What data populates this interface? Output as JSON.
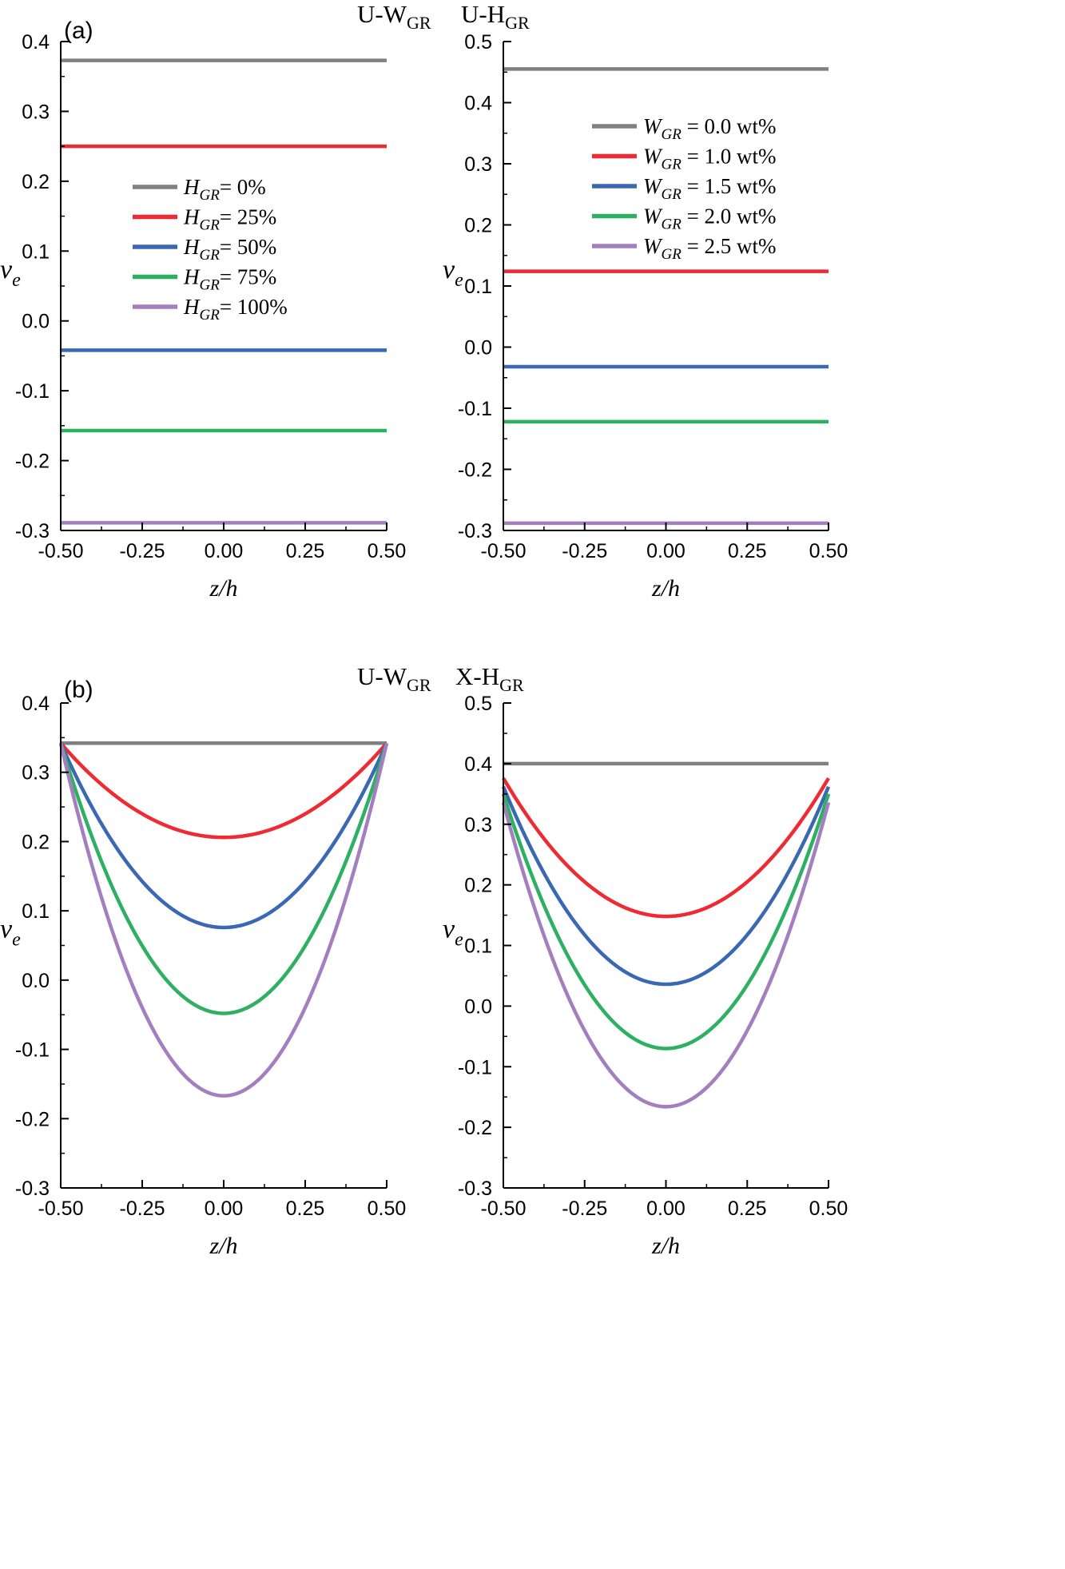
{
  "figure": {
    "panel_a": {
      "label": "(a)",
      "title_left": {
        "base": "U-W",
        "sub": "GR"
      },
      "title_right": {
        "base": "U-H",
        "sub": "GR"
      }
    },
    "panel_b": {
      "label": "(b)",
      "title_left": {
        "base": "U-W",
        "sub": "GR"
      },
      "title_right": {
        "base": "X-H",
        "sub": "GR"
      }
    }
  },
  "chart_data": [
    {
      "id": "a-left",
      "type": "line",
      "shape": "constant",
      "panel": "(a)",
      "xlabel": "z/h",
      "ylabel": {
        "base": "v",
        "sub": "e"
      },
      "xlim": [
        -0.5,
        0.5
      ],
      "ylim": [
        -0.3,
        0.4
      ],
      "xticks": [
        -0.5,
        -0.25,
        0.0,
        0.25,
        0.5
      ],
      "xtick_labels": [
        "-0.50",
        "-0.25",
        "0.00",
        "0.25",
        "0.50"
      ],
      "yticks": [
        -0.3,
        -0.2,
        -0.1,
        0.0,
        0.1,
        0.2,
        0.3,
        0.4
      ],
      "ytick_labels": [
        "-0.3",
        "-0.2",
        "-0.1",
        "0.0",
        "0.1",
        "0.2",
        "0.3",
        "0.4"
      ],
      "grid": false,
      "legend_position": "center-left",
      "series": [
        {
          "name": "H_GR= 0%",
          "legend": {
            "var": "H",
            "sub": "GR",
            "text": "= 0%"
          },
          "color": "#808080",
          "values": [
            0.373,
            0.373
          ]
        },
        {
          "name": "H_GR= 25%",
          "legend": {
            "var": "H",
            "sub": "GR",
            "text": "= 25%"
          },
          "color": "#ee2a33",
          "values": [
            0.25,
            0.25
          ]
        },
        {
          "name": "H_GR= 50%",
          "legend": {
            "var": "H",
            "sub": "GR",
            "text": "= 50%"
          },
          "color": "#3a68b3",
          "values": [
            -0.042,
            -0.042
          ]
        },
        {
          "name": "H_GR= 75%",
          "legend": {
            "var": "H",
            "sub": "GR",
            "text": "= 75%"
          },
          "color": "#2eb062",
          "values": [
            -0.157,
            -0.157
          ]
        },
        {
          "name": "H_GR= 100%",
          "legend": {
            "var": "H",
            "sub": "GR",
            "text": "= 100%"
          },
          "color": "#a37fc0",
          "values": [
            -0.289,
            -0.289
          ]
        }
      ]
    },
    {
      "id": "a-right",
      "type": "line",
      "shape": "constant",
      "panel": "(a)",
      "xlabel": "z/h",
      "ylabel": {
        "base": "v",
        "sub": "e"
      },
      "xlim": [
        -0.5,
        0.5
      ],
      "ylim": [
        -0.3,
        0.5
      ],
      "xticks": [
        -0.5,
        -0.25,
        0.0,
        0.25,
        0.5
      ],
      "xtick_labels": [
        "-0.50",
        "-0.25",
        "0.00",
        "0.25",
        "0.50"
      ],
      "yticks": [
        -0.3,
        -0.2,
        -0.1,
        0.0,
        0.1,
        0.2,
        0.3,
        0.4,
        0.5
      ],
      "ytick_labels": [
        "-0.3",
        "-0.2",
        "-0.1",
        "0.0",
        "0.1",
        "0.2",
        "0.3",
        "0.4",
        "0.5"
      ],
      "grid": false,
      "legend_position": "top-center",
      "series": [
        {
          "name": "W_GR = 0.0 wt%",
          "legend": {
            "var": "W",
            "sub": "GR",
            "text": " = 0.0 wt%"
          },
          "color": "#808080",
          "values": [
            0.455,
            0.455
          ]
        },
        {
          "name": "W_GR = 1.0 wt%",
          "legend": {
            "var": "W",
            "sub": "GR",
            "text": " = 1.0 wt%"
          },
          "color": "#ee2a33",
          "values": [
            0.124,
            0.124
          ]
        },
        {
          "name": "W_GR = 1.5 wt%",
          "legend": {
            "var": "W",
            "sub": "GR",
            "text": " = 1.5 wt%"
          },
          "color": "#3a68b3",
          "values": [
            -0.032,
            -0.032
          ]
        },
        {
          "name": "W_GR = 2.0 wt%",
          "legend": {
            "var": "W",
            "sub": "GR",
            "text": " = 2.0 wt%"
          },
          "color": "#2eb062",
          "values": [
            -0.122,
            -0.122
          ]
        },
        {
          "name": "W_GR = 2.5 wt%",
          "legend": {
            "var": "W",
            "sub": "GR",
            "text": " = 2.5 wt%"
          },
          "color": "#a37fc0",
          "values": [
            -0.288,
            -0.288
          ]
        }
      ]
    },
    {
      "id": "b-left",
      "type": "line",
      "shape": "parabolic",
      "panel": "(b)",
      "xlabel": "z/h",
      "ylabel": {
        "base": "v",
        "sub": "e"
      },
      "xlim": [
        -0.5,
        0.5
      ],
      "ylim": [
        -0.3,
        0.4
      ],
      "xticks": [
        -0.5,
        -0.25,
        0.0,
        0.25,
        0.5
      ],
      "xtick_labels": [
        "-0.50",
        "-0.25",
        "0.00",
        "0.25",
        "0.50"
      ],
      "yticks": [
        -0.3,
        -0.2,
        -0.1,
        0.0,
        0.1,
        0.2,
        0.3,
        0.4
      ],
      "ytick_labels": [
        "-0.3",
        "-0.2",
        "-0.1",
        "0.0",
        "0.1",
        "0.2",
        "0.3",
        "0.4"
      ],
      "grid": false,
      "series": [
        {
          "color": "#808080",
          "edge": 0.342,
          "center": 0.342
        },
        {
          "color": "#ee2a33",
          "edge": 0.342,
          "center": 0.206
        },
        {
          "color": "#3a68b3",
          "edge": 0.342,
          "center": 0.076
        },
        {
          "color": "#2eb062",
          "edge": 0.342,
          "center": -0.048
        },
        {
          "color": "#a37fc0",
          "edge": 0.342,
          "center": -0.167
        }
      ]
    },
    {
      "id": "b-right",
      "type": "line",
      "shape": "parabolic",
      "panel": "(b)",
      "xlabel": "z/h",
      "ylabel": {
        "base": "v",
        "sub": "e"
      },
      "xlim": [
        -0.5,
        0.5
      ],
      "ylim": [
        -0.3,
        0.5
      ],
      "xticks": [
        -0.5,
        -0.25,
        0.0,
        0.25,
        0.5
      ],
      "xtick_labels": [
        "-0.50",
        "-0.25",
        "0.00",
        "0.25",
        "0.50"
      ],
      "yticks": [
        -0.3,
        -0.2,
        -0.1,
        0.0,
        0.1,
        0.2,
        0.3,
        0.4,
        0.5
      ],
      "ytick_labels": [
        "-0.3",
        "-0.2",
        "-0.1",
        "0.0",
        "0.1",
        "0.2",
        "0.3",
        "0.4",
        "0.5"
      ],
      "grid": false,
      "series": [
        {
          "color": "#808080",
          "edge": 0.4,
          "center": 0.4
        },
        {
          "color": "#ee2a33",
          "edge": 0.376,
          "center": 0.148
        },
        {
          "color": "#3a68b3",
          "edge": 0.362,
          "center": 0.036
        },
        {
          "color": "#2eb062",
          "edge": 0.35,
          "center": -0.07
        },
        {
          "color": "#a37fc0",
          "edge": 0.336,
          "center": -0.166
        }
      ]
    }
  ]
}
